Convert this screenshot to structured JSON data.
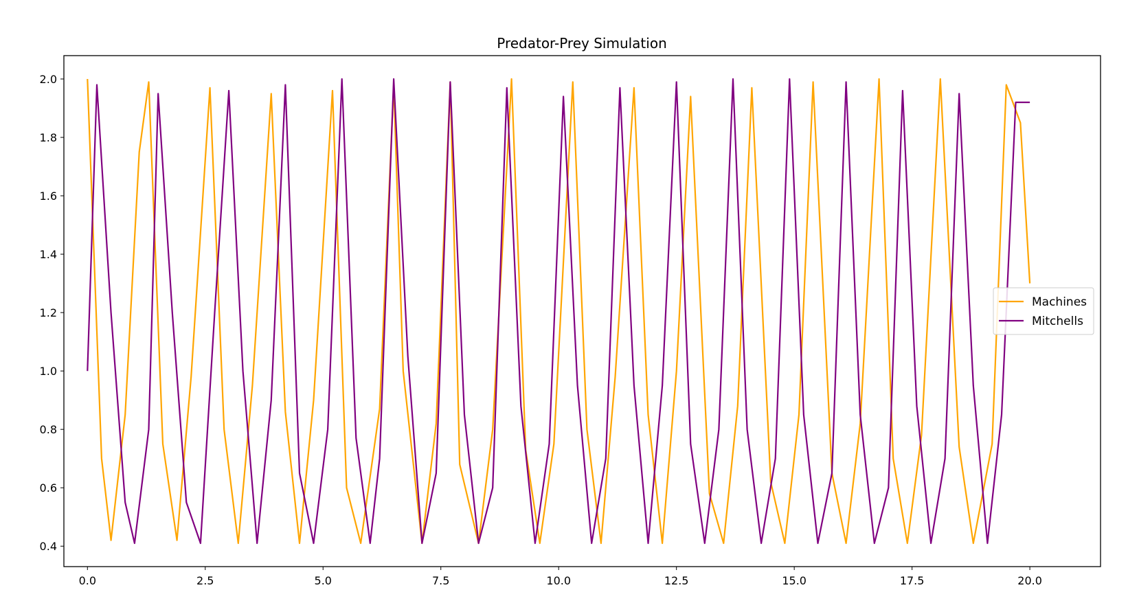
{
  "chart_data": {
    "type": "line",
    "title": "Predator-Prey Simulation",
    "xlabel": "",
    "ylabel": "",
    "xlim": [
      -0.5,
      21.5
    ],
    "ylim": [
      0.33,
      2.08
    ],
    "xticks": [
      0.0,
      2.5,
      5.0,
      7.5,
      10.0,
      12.5,
      15.0,
      17.5,
      20.0
    ],
    "xtick_labels": [
      "0.0",
      "2.5",
      "5.0",
      "7.5",
      "10.0",
      "12.5",
      "15.0",
      "17.5",
      "20.0"
    ],
    "yticks": [
      0.4,
      0.6,
      0.8,
      1.0,
      1.2,
      1.4,
      1.6,
      1.8,
      2.0
    ],
    "ytick_labels": [
      "0.4",
      "0.6",
      "0.8",
      "1.0",
      "1.2",
      "1.4",
      "1.6",
      "1.8",
      "2.0"
    ],
    "grid": false,
    "legend_position": "center-right",
    "series": [
      {
        "name": "Machines",
        "color": "#ffa500",
        "x": [
          0.0,
          0.3,
          0.5,
          0.8,
          1.1,
          1.3,
          1.6,
          1.9,
          2.2,
          2.6,
          2.9,
          3.2,
          3.5,
          3.9,
          4.2,
          4.5,
          4.8,
          5.2,
          5.5,
          5.8,
          6.2,
          6.5,
          6.7,
          7.1,
          7.4,
          7.7,
          7.9,
          8.3,
          8.6,
          9.0,
          9.3,
          9.6,
          9.9,
          10.3,
          10.6,
          10.9,
          11.2,
          11.6,
          11.9,
          12.2,
          12.5,
          12.8,
          13.2,
          13.5,
          13.8,
          14.1,
          14.5,
          14.8,
          15.1,
          15.4,
          15.8,
          16.1,
          16.4,
          16.8,
          17.1,
          17.4,
          17.7,
          18.1,
          18.5,
          18.8,
          19.2,
          19.5,
          19.8,
          20.0
        ],
        "y": [
          2.0,
          0.7,
          0.42,
          0.85,
          1.75,
          1.99,
          0.75,
          0.42,
          0.98,
          1.97,
          0.8,
          0.41,
          0.95,
          1.95,
          0.86,
          0.41,
          0.9,
          1.96,
          0.6,
          0.41,
          0.87,
          1.98,
          1.0,
          0.41,
          0.82,
          1.99,
          0.68,
          0.41,
          0.8,
          2.0,
          0.73,
          0.41,
          0.75,
          1.99,
          0.8,
          0.41,
          0.98,
          1.97,
          0.85,
          0.41,
          1.0,
          1.94,
          0.58,
          0.41,
          0.88,
          1.97,
          0.62,
          0.41,
          0.85,
          1.99,
          0.65,
          0.41,
          0.82,
          2.0,
          0.7,
          0.41,
          0.78,
          2.0,
          0.74,
          0.41,
          0.75,
          1.98,
          1.85,
          1.3
        ]
      },
      {
        "name": "Mitchells",
        "color": "#800080",
        "x": [
          0.0,
          0.2,
          0.5,
          0.8,
          1.0,
          1.3,
          1.5,
          1.8,
          2.1,
          2.4,
          2.7,
          3.0,
          3.3,
          3.6,
          3.9,
          4.2,
          4.5,
          4.8,
          5.1,
          5.4,
          5.7,
          6.0,
          6.2,
          6.5,
          6.8,
          7.1,
          7.4,
          7.7,
          8.0,
          8.3,
          8.6,
          8.9,
          9.2,
          9.5,
          9.8,
          10.1,
          10.4,
          10.7,
          11.0,
          11.3,
          11.6,
          11.9,
          12.2,
          12.5,
          12.8,
          13.1,
          13.4,
          13.7,
          14.0,
          14.3,
          14.6,
          14.9,
          15.2,
          15.5,
          15.8,
          16.1,
          16.4,
          16.7,
          17.0,
          17.3,
          17.6,
          17.9,
          18.2,
          18.5,
          18.8,
          19.1,
          19.4,
          19.7,
          20.0
        ],
        "y": [
          1.0,
          1.98,
          1.2,
          0.55,
          0.41,
          0.8,
          1.95,
          1.2,
          0.55,
          0.41,
          1.2,
          1.96,
          1.0,
          0.41,
          0.9,
          1.98,
          0.65,
          0.41,
          0.8,
          2.0,
          0.77,
          0.41,
          0.7,
          2.0,
          1.05,
          0.41,
          0.65,
          1.99,
          0.85,
          0.41,
          0.6,
          1.97,
          0.88,
          0.41,
          0.75,
          1.94,
          0.95,
          0.41,
          0.7,
          1.97,
          0.95,
          0.41,
          0.95,
          1.99,
          0.75,
          0.41,
          0.8,
          2.0,
          0.8,
          0.41,
          0.7,
          2.0,
          0.85,
          0.41,
          0.65,
          1.99,
          0.85,
          0.41,
          0.6,
          1.96,
          0.88,
          0.41,
          0.7,
          1.95,
          0.95,
          0.41,
          0.85,
          1.92,
          1.92
        ]
      }
    ]
  }
}
